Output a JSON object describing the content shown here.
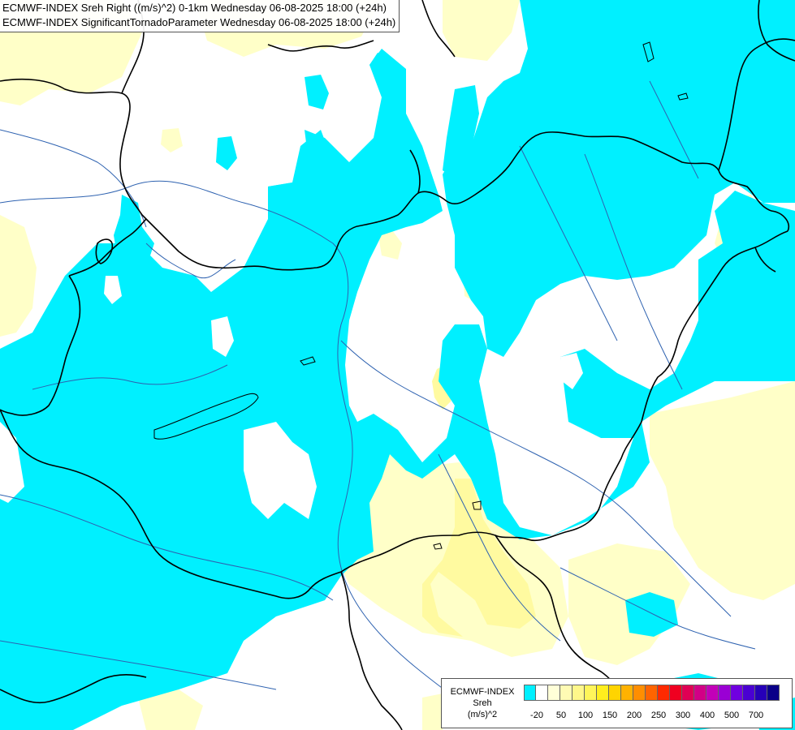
{
  "title_lines": [
    "ECMWF-INDEX Sreh Right ((m/s)^2) 0-1km Wednesday 06-08-2025 18:00 (+24h)",
    "ECMWF-INDEX SignificantTornadoParameter Wednesday 06-08-2025 18:00 (+24h)"
  ],
  "legend": {
    "title_lines": [
      "ECMWF-INDEX",
      "Sreh",
      "(m/s)^2"
    ],
    "swatch_colors": [
      "#00f0ff",
      "#ffffff",
      "#ffffd8",
      "#fffbb4",
      "#fff78a",
      "#fff55a",
      "#ffee1e",
      "#ffd400",
      "#ffb200",
      "#ff8e00",
      "#ff6400",
      "#ff2a00",
      "#f00020",
      "#e00054",
      "#d20086",
      "#c200b8",
      "#9a00d4",
      "#7000e0",
      "#4a00d2",
      "#2600b8",
      "#0a0088"
    ],
    "tick_labels": [
      "-20",
      "50",
      "100",
      "150",
      "200",
      "250",
      "300",
      "400",
      "500",
      "700"
    ]
  },
  "map_colors": {
    "background": "#ffffff",
    "cyan_field": "#00f0ff",
    "pale_yellow_field": "#ffffc8",
    "yellow_field": "#fffaa0",
    "border": "#000000",
    "river": "#2e62b0"
  }
}
